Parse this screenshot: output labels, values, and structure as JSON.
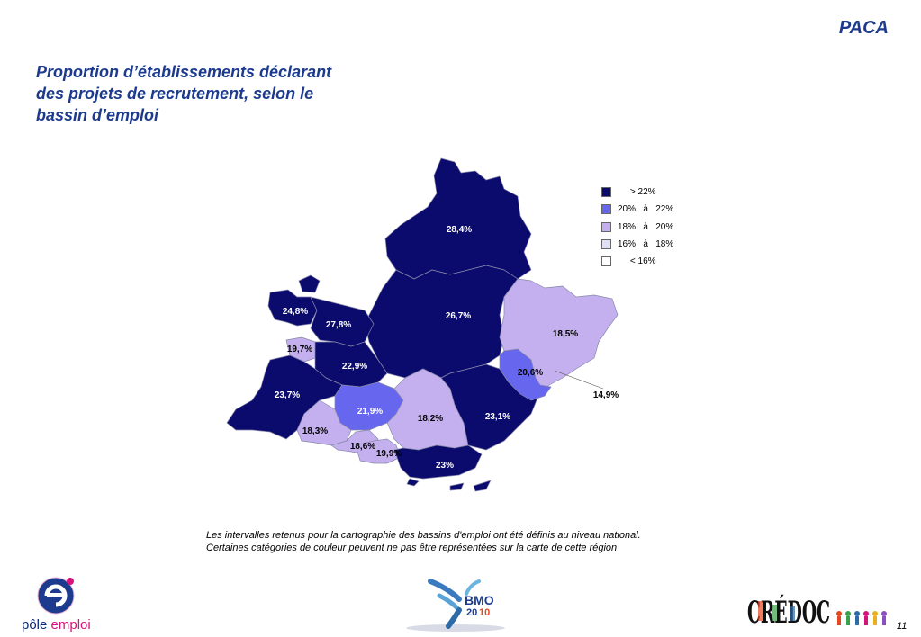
{
  "header": {
    "region": "PACA",
    "title_lines": [
      "Proportion d’établissements déclarant",
      "des projets de recrutement, selon le",
      "bassin d’emploi"
    ]
  },
  "legend": {
    "items": [
      {
        "label": "     > 22%",
        "color": "#0b0b6e"
      },
      {
        "label": "20%   à   22%",
        "color": "#6666ee"
      },
      {
        "label": "18%   à   20%",
        "color": "#c4b0ee"
      },
      {
        "label": "16%   à   18%",
        "color": "#e0e0f5"
      },
      {
        "label": "     < 16%",
        "color": "#ffffff"
      }
    ]
  },
  "map": {
    "colors": {
      "dark": "#0b0b6e",
      "medium": "#6666ee",
      "light": "#c4b0ee",
      "pale": "#e0e0f5",
      "border": "#8888aa"
    },
    "labels": {
      "north": "28,4%",
      "center": "26,7%",
      "nw_small": "24,8%",
      "nw_mid": "27,8%",
      "west_small": "19,7%",
      "west_mid": "22,9%",
      "west": "23,7%",
      "middle_blue": "21,9%",
      "var_center": "18,2%",
      "var_east": "23,1%",
      "alpes_maritimes": "18,5%",
      "nice": "20,6%",
      "outside": "14,9%",
      "arles": "18,3%",
      "marseille": "18,6%",
      "aubagne": "19,9%",
      "toulon": "23%"
    }
  },
  "footnote": {
    "line1": "Les intervalles retenus pour la cartographie des bassins d'emploi ont été définis au niveau national.",
    "line2": "Certaines catégories de couleur peuvent ne pas être représentées sur la carte de cette région"
  },
  "logos": {
    "pole_emploi": {
      "part1": "pôle ",
      "part2": "emploi"
    },
    "bmo": {
      "text": "BMO",
      "year_a": "20",
      "year_b": "10"
    },
    "credoc": {
      "text": "CRÉDOC"
    }
  },
  "page_number": "11"
}
